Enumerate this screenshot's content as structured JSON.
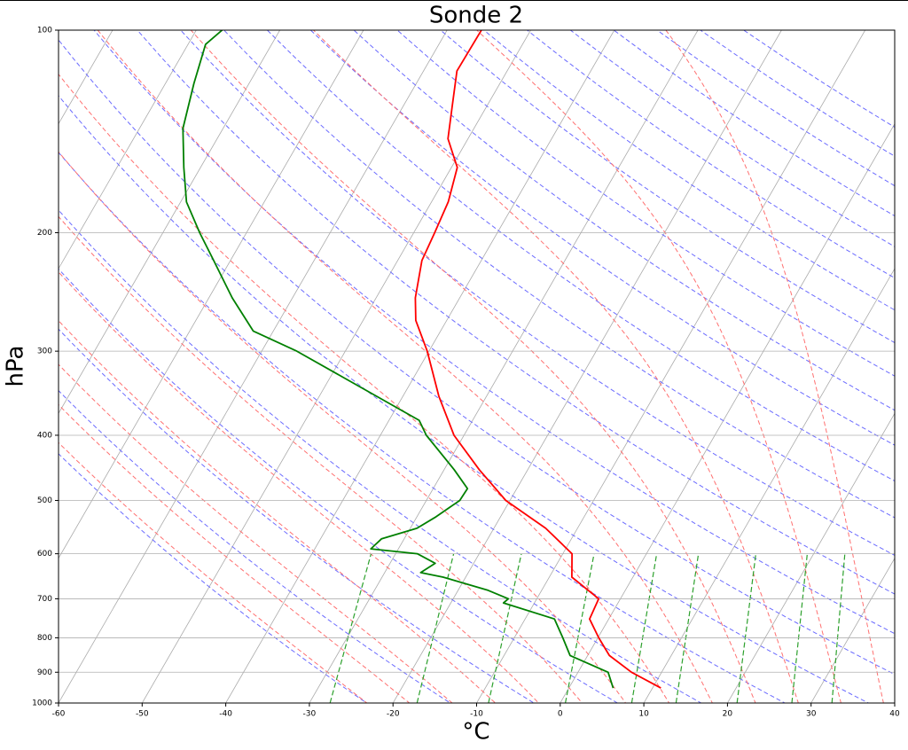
{
  "chart_data": {
    "type": "skewt",
    "title": "Sonde 2",
    "x_label": "°C",
    "y_label": "hPa",
    "xlim": [
      -60,
      40
    ],
    "ylim": [
      1000,
      100
    ],
    "y_log": true,
    "grid": true,
    "xticks": [
      -60,
      -50,
      -40,
      -30,
      -20,
      -10,
      0,
      10,
      20,
      30,
      40
    ],
    "yticks": [
      100,
      200,
      300,
      400,
      500,
      600,
      700,
      800,
      900,
      1000
    ],
    "series": [
      {
        "color": "#ff0000",
        "pressure": [
          950,
          900,
          850,
          800,
          750,
          700,
          650,
          600,
          550,
          500,
          450,
          400,
          350,
          300,
          270,
          250,
          220,
          200,
          180,
          160,
          145,
          130,
          115,
          100
        ],
        "values": [
          11.0,
          6.4,
          2.6,
          0.1,
          -2.3,
          -2.6,
          -7.3,
          -8.9,
          -13.8,
          -20.5,
          -25.8,
          -31.2,
          -35.7,
          -40.2,
          -43.7,
          -45.3,
          -47.1,
          -47.5,
          -48.0,
          -49.3,
          -52.4,
          -54.1,
          -56.0,
          -55.9
        ]
      },
      {
        "color": "#008000",
        "pressure": [
          950,
          900,
          850,
          800,
          750,
          710,
          700,
          680,
          650,
          640,
          620,
          600,
          590,
          570,
          550,
          530,
          500,
          480,
          450,
          400,
          380,
          300,
          280,
          250,
          220,
          200,
          180,
          160,
          140,
          120,
          105,
          100
        ],
        "values": [
          5.3,
          3.6,
          -2.1,
          -4.2,
          -6.5,
          -13.7,
          -13.4,
          -16.4,
          -22.7,
          -25.7,
          -24.6,
          -27.4,
          -33.3,
          -32.7,
          -29.2,
          -27.8,
          -26.0,
          -25.9,
          -28.8,
          -34.5,
          -36.4,
          -55.8,
          -62.4,
          -67.2,
          -72.0,
          -75.6,
          -79.3,
          -82.0,
          -84.8,
          -86.6,
          -87.9,
          -86.9
        ]
      }
    ]
  }
}
